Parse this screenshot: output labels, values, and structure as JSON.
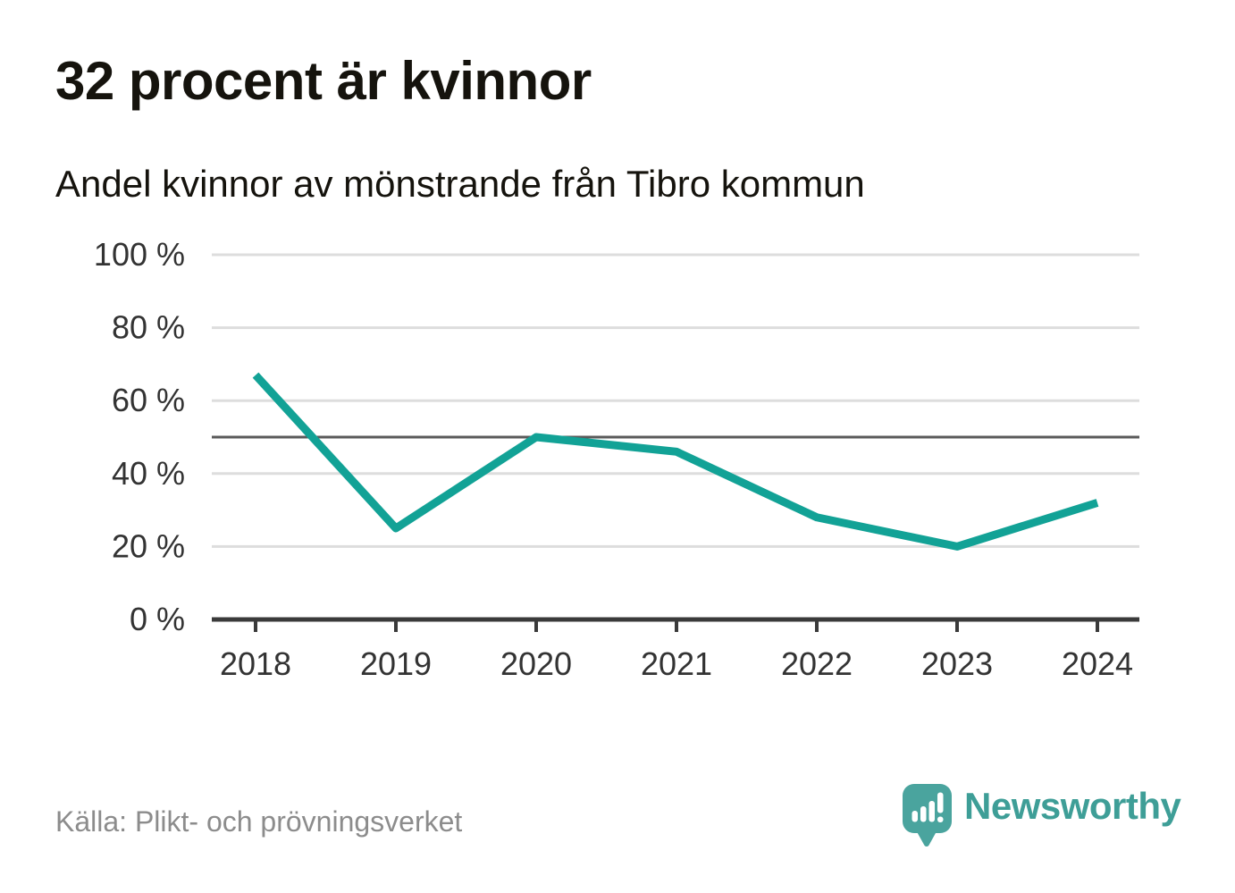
{
  "header": {
    "title": "32 procent är kvinnor",
    "subtitle": "Andel kvinnor av mönstrande från Tibro kommun"
  },
  "chart_data": {
    "type": "line",
    "title": "32 procent är kvinnor",
    "subtitle": "Andel kvinnor av mönstrande från Tibro kommun",
    "x": [
      "2018",
      "2019",
      "2020",
      "2021",
      "2022",
      "2023",
      "2024"
    ],
    "series": [
      {
        "name": "Andel kvinnor av mönstrande",
        "values": [
          67,
          25,
          50,
          46,
          28,
          20,
          32
        ],
        "color": "#12a296"
      }
    ],
    "xlabel": "",
    "ylabel": "",
    "ylim": [
      0,
      100
    ],
    "yticks": [
      0,
      20,
      40,
      60,
      80,
      100
    ],
    "ytick_suffix": " %",
    "reference_line": 50,
    "grid": true,
    "legend_position": "none"
  },
  "footer": {
    "source": "Källa: Plikt- och prövningsverket",
    "brand": "Newsworthy"
  },
  "colors": {
    "line": "#12a296",
    "grid": "#dddddd",
    "reference": "#5a5a5a",
    "axis": "#3a3a3a",
    "tick_label": "#333333",
    "title": "#15130d",
    "source": "#8c8c8c",
    "brand": "#3e9e97",
    "logo_bg": "#4aa49e"
  }
}
